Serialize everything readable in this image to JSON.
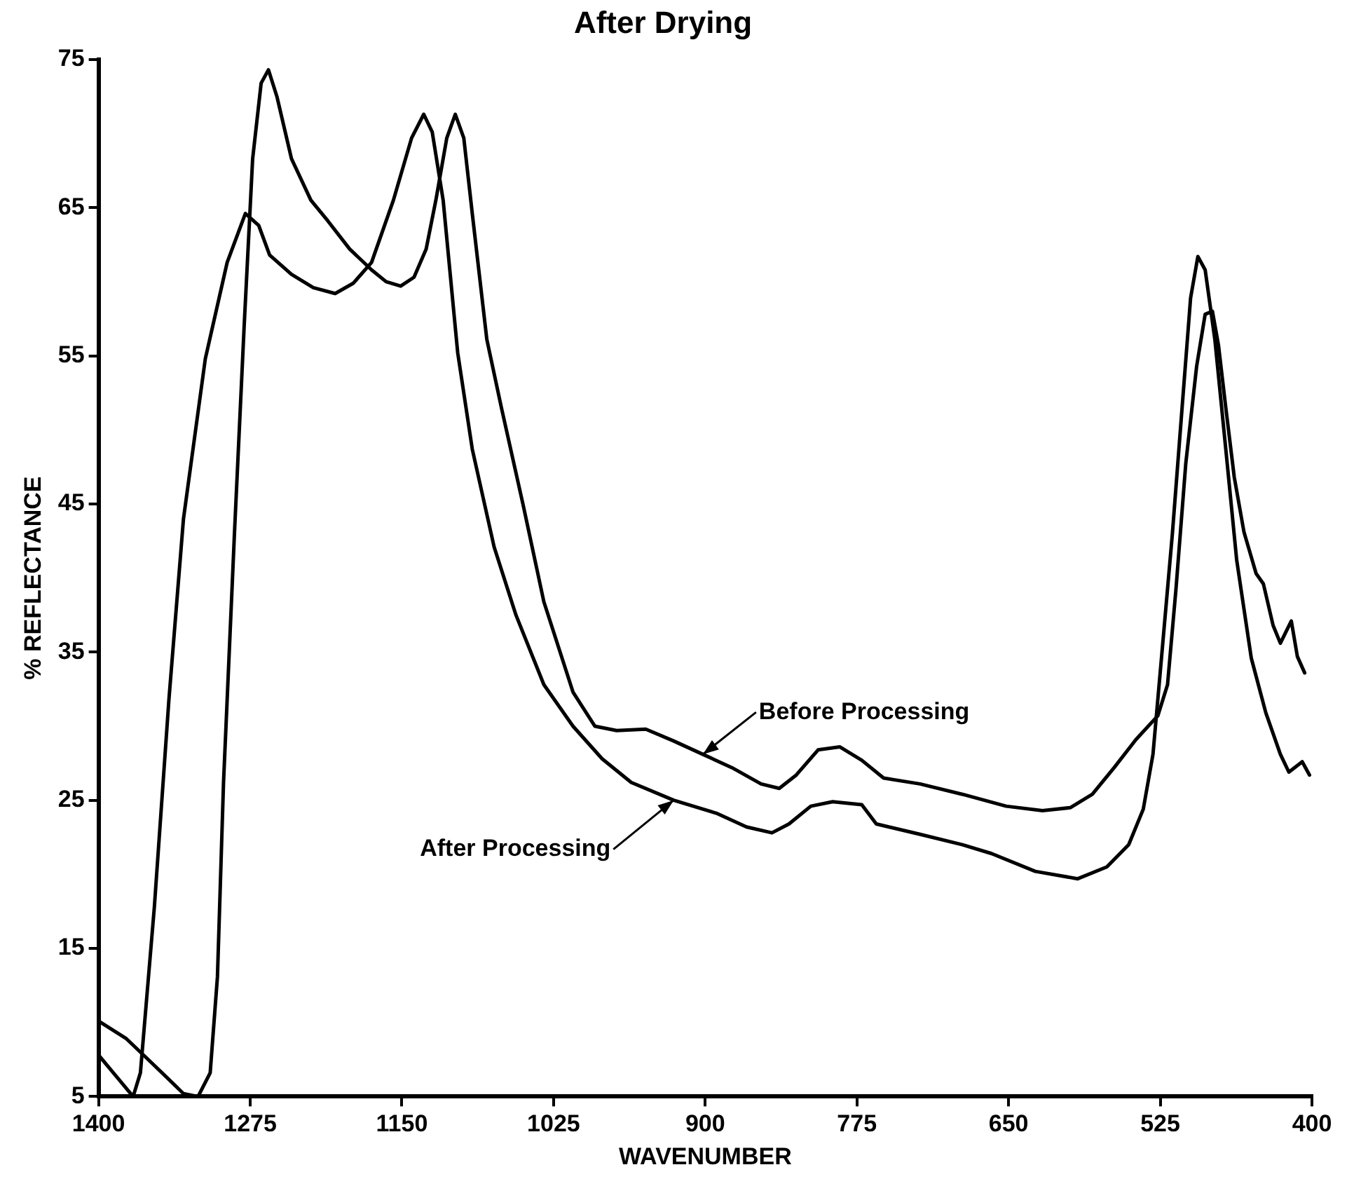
{
  "chart_data": {
    "type": "line",
    "title": "After Drying",
    "xlabel": "WAVENUMBER",
    "ylabel": "% REFLECTANCE",
    "xlim": [
      1400,
      400
    ],
    "xticks": [
      1400,
      1275,
      1150,
      1025,
      900,
      775,
      650,
      525,
      400
    ],
    "ylim": [
      5,
      75
    ],
    "yticks": [
      5,
      15,
      25,
      35,
      45,
      55,
      65,
      75
    ],
    "grid": false,
    "legend": false,
    "marker": "none",
    "line_style": "solid",
    "series": [
      {
        "name": "Before Processing",
        "color": "#000000",
        "x": [
          1400,
          1377,
          1354,
          1330,
          1318,
          1308,
          1302,
          1297,
          1288,
          1280,
          1273,
          1266,
          1260,
          1253,
          1241,
          1225,
          1211,
          1193,
          1175,
          1163,
          1151,
          1140,
          1130,
          1122,
          1113,
          1106,
          1099,
          1092,
          1080,
          1068,
          1050,
          1033,
          1009,
          991,
          973,
          949,
          926,
          902,
          878,
          854,
          839,
          825,
          807,
          789,
          771,
          753,
          723,
          688,
          652,
          622,
          599,
          581,
          563,
          545,
          527,
          519,
          512,
          504,
          495,
          488,
          482,
          477,
          471,
          464,
          456,
          446,
          440,
          432,
          426,
          417,
          412,
          406
        ],
        "values": [
          10.1,
          8.9,
          7.1,
          5.2,
          5,
          6.6,
          13.1,
          26.2,
          43,
          57,
          68.3,
          73.4,
          74.3,
          72.5,
          68.3,
          65.5,
          64.1,
          62.2,
          60.8,
          60,
          59.7,
          60.3,
          62.2,
          65.5,
          69.7,
          71.3,
          69.7,
          64.6,
          56.1,
          51.5,
          44.9,
          38.4,
          32.3,
          30,
          29.7,
          29.8,
          29,
          28.1,
          27.2,
          26.1,
          25.8,
          26.7,
          28.4,
          28.6,
          27.7,
          26.5,
          26.1,
          25.4,
          24.6,
          24.3,
          24.5,
          25.4,
          27.2,
          29.1,
          30.7,
          32.8,
          39.3,
          47.7,
          54.3,
          57.8,
          58,
          55.7,
          51.5,
          46.8,
          43.1,
          40.3,
          39.6,
          36.8,
          35.6,
          37.1,
          34.7,
          33.6
        ]
      },
      {
        "name": "After Processing",
        "color": "#000000",
        "x": [
          1400,
          1371.5,
          1365.5,
          1354,
          1342,
          1330,
          1312,
          1294,
          1279,
          1268,
          1259,
          1241,
          1223,
          1205,
          1190,
          1175,
          1157,
          1142,
          1132,
          1125,
          1116,
          1104,
          1092,
          1074,
          1056,
          1033,
          1009,
          985,
          961,
          926,
          890,
          866,
          845,
          831,
          813,
          795,
          771,
          759,
          723,
          688,
          664,
          628,
          593,
          569,
          551,
          539,
          531,
          524,
          515,
          507,
          500,
          494,
          488,
          480,
          471,
          462,
          450,
          438,
          426,
          419,
          408,
          402
        ],
        "values": [
          7.8,
          5,
          6.6,
          17.8,
          31.8,
          44,
          54.8,
          61.3,
          64.6,
          63.8,
          61.8,
          60.5,
          59.6,
          59.2,
          59.9,
          61.3,
          65.5,
          69.7,
          71.3,
          70.1,
          65.5,
          55.2,
          48.7,
          42.1,
          37.5,
          32.8,
          30,
          27.8,
          26.2,
          25,
          24.1,
          23.2,
          22.8,
          23.4,
          24.6,
          24.9,
          24.7,
          23.4,
          22.7,
          22,
          21.4,
          20.2,
          19.7,
          20.5,
          22,
          24.4,
          28.1,
          34.6,
          43,
          51.5,
          58.9,
          61.7,
          60.8,
          56.1,
          48.7,
          41.2,
          34.6,
          30.9,
          28.1,
          26.9,
          27.6,
          26.7
        ]
      }
    ]
  }
}
